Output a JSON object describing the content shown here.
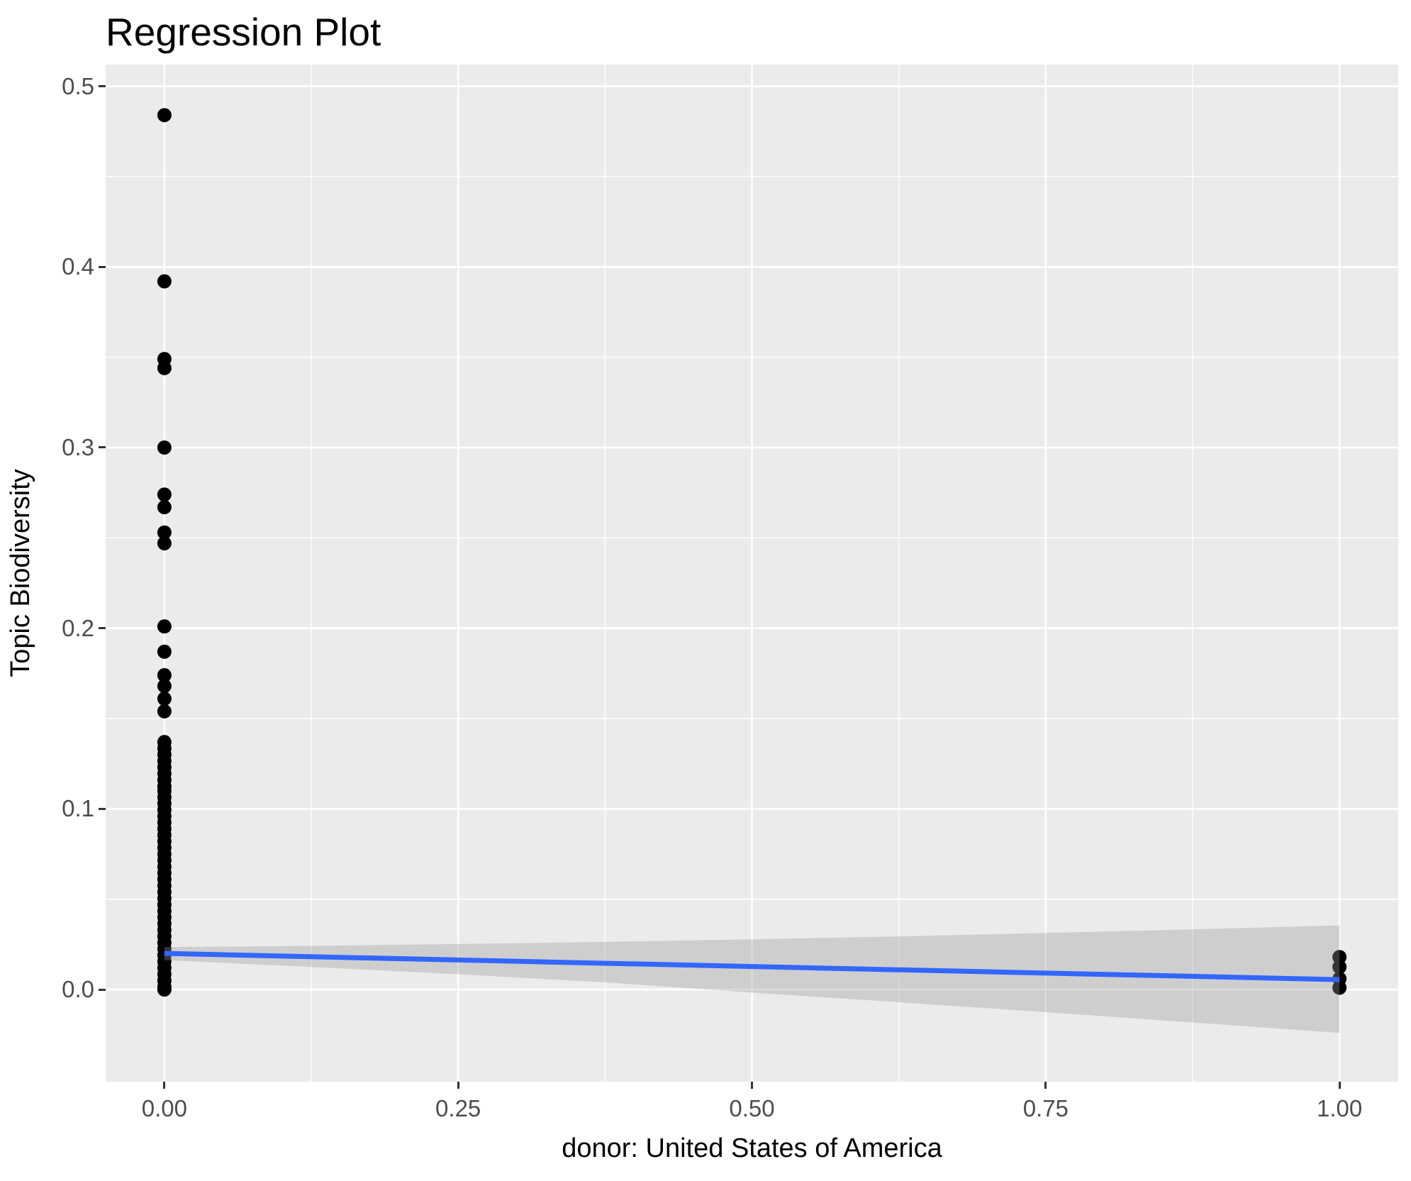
{
  "chart_data": {
    "type": "scatter",
    "title": "Regression Plot",
    "xlabel": "donor: United States of America",
    "ylabel": "Topic Biodiversity",
    "xlim": [
      -0.05,
      1.05
    ],
    "ylim": [
      -0.051,
      0.512
    ],
    "grid": "on",
    "legend": "none",
    "x_ticks": [
      {
        "value": 0.0,
        "label": "0.00"
      },
      {
        "value": 0.25,
        "label": "0.25"
      },
      {
        "value": 0.5,
        "label": "0.50"
      },
      {
        "value": 0.75,
        "label": "0.75"
      },
      {
        "value": 1.0,
        "label": "1.00"
      }
    ],
    "y_ticks": [
      {
        "value": 0.0,
        "label": "0.0"
      },
      {
        "value": 0.1,
        "label": "0.1"
      },
      {
        "value": 0.2,
        "label": "0.2"
      },
      {
        "value": 0.3,
        "label": "0.3"
      },
      {
        "value": 0.4,
        "label": "0.4"
      },
      {
        "value": 0.5,
        "label": "0.5"
      }
    ],
    "x_minor_gridlines": [
      0.125,
      0.375,
      0.625,
      0.875
    ],
    "y_minor_gridlines": [
      0.05,
      0.15,
      0.25,
      0.35,
      0.45
    ],
    "series": [
      {
        "name": "observations-x0",
        "type": "points",
        "x": 0,
        "y_values": [
          0.484,
          0.392,
          0.349,
          0.344,
          0.3,
          0.274,
          0.267,
          0.253,
          0.247,
          0.201,
          0.187,
          0.174,
          0.168,
          0.161,
          0.154,
          0.137,
          0.1335,
          0.13,
          0.1265,
          0.123,
          0.1195,
          0.116,
          0.1125,
          0.11,
          0.1065,
          0.103,
          0.0995,
          0.096,
          0.0925,
          0.089,
          0.0855,
          0.082,
          0.0785,
          0.075,
          0.0715,
          0.068,
          0.0645,
          0.061,
          0.0575,
          0.054,
          0.0505,
          0.047,
          0.0435,
          0.04,
          0.0365,
          0.033,
          0.0295,
          0.026,
          0.0225,
          0.019,
          0.0155,
          0.012,
          0.0085,
          0.005,
          0.0015,
          0.0
        ]
      },
      {
        "name": "observations-x1",
        "type": "points",
        "x": 1,
        "y_values": [
          0.018,
          0.0125,
          0.006,
          0.001
        ]
      },
      {
        "name": "confidence-band",
        "type": "band",
        "x": [
          0,
          0.125,
          0.25,
          0.375,
          0.5,
          0.625,
          0.75,
          0.875,
          1.0
        ],
        "upper": [
          0.0235,
          0.0242,
          0.0252,
          0.0264,
          0.0278,
          0.0294,
          0.0313,
          0.0333,
          0.0355
        ],
        "lower": [
          0.0163,
          0.0125,
          0.0085,
          0.004,
          -0.0017,
          -0.007,
          -0.0125,
          -0.0182,
          -0.024
        ]
      },
      {
        "name": "regression-line",
        "type": "line",
        "x": [
          0,
          1
        ],
        "y": [
          0.02,
          0.0055
        ]
      }
    ],
    "colors": {
      "panel_background": "#EBEBEB",
      "gridline": "#FFFFFF",
      "point": "#000000",
      "regression_line": "#3366FF",
      "band_fill": "#999999",
      "band_opacity": 0.35,
      "tick_text": "#4D4D4D",
      "tick_mark": "#333333",
      "title_text": "#000000"
    }
  }
}
